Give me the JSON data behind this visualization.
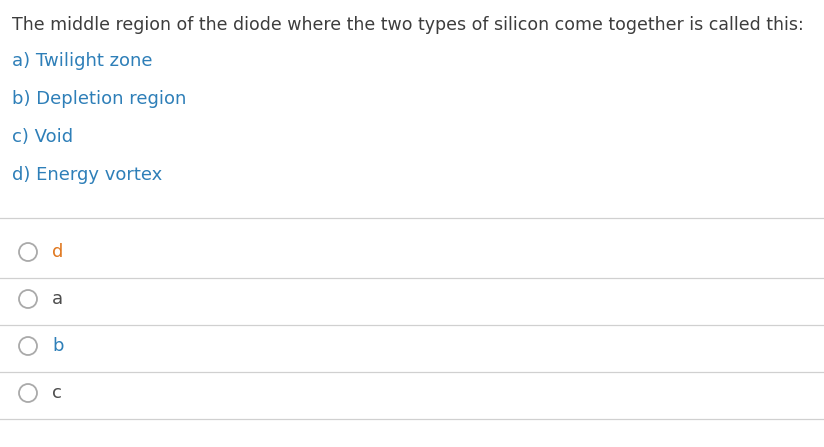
{
  "background_color": "#ffffff",
  "question_text": "The middle region of the diode where the two types of silicon come together is called this:",
  "question_color": "#3d3d3d",
  "options": [
    "a) Twilight zone",
    "b) Depletion region",
    "c) Void",
    "d) Energy vortex"
  ],
  "option_color": "#2e7fb8",
  "radio_labels": [
    "d",
    "a",
    "b",
    "c"
  ],
  "radio_label_colors": [
    "#e07820",
    "#4d4d4d",
    "#2e7fb8",
    "#4d4d4d"
  ],
  "radio_circle_color": "#aaaaaa",
  "separator_color": "#d0d0d0",
  "question_fontsize": 12.5,
  "option_fontsize": 13,
  "radio_fontsize": 13
}
